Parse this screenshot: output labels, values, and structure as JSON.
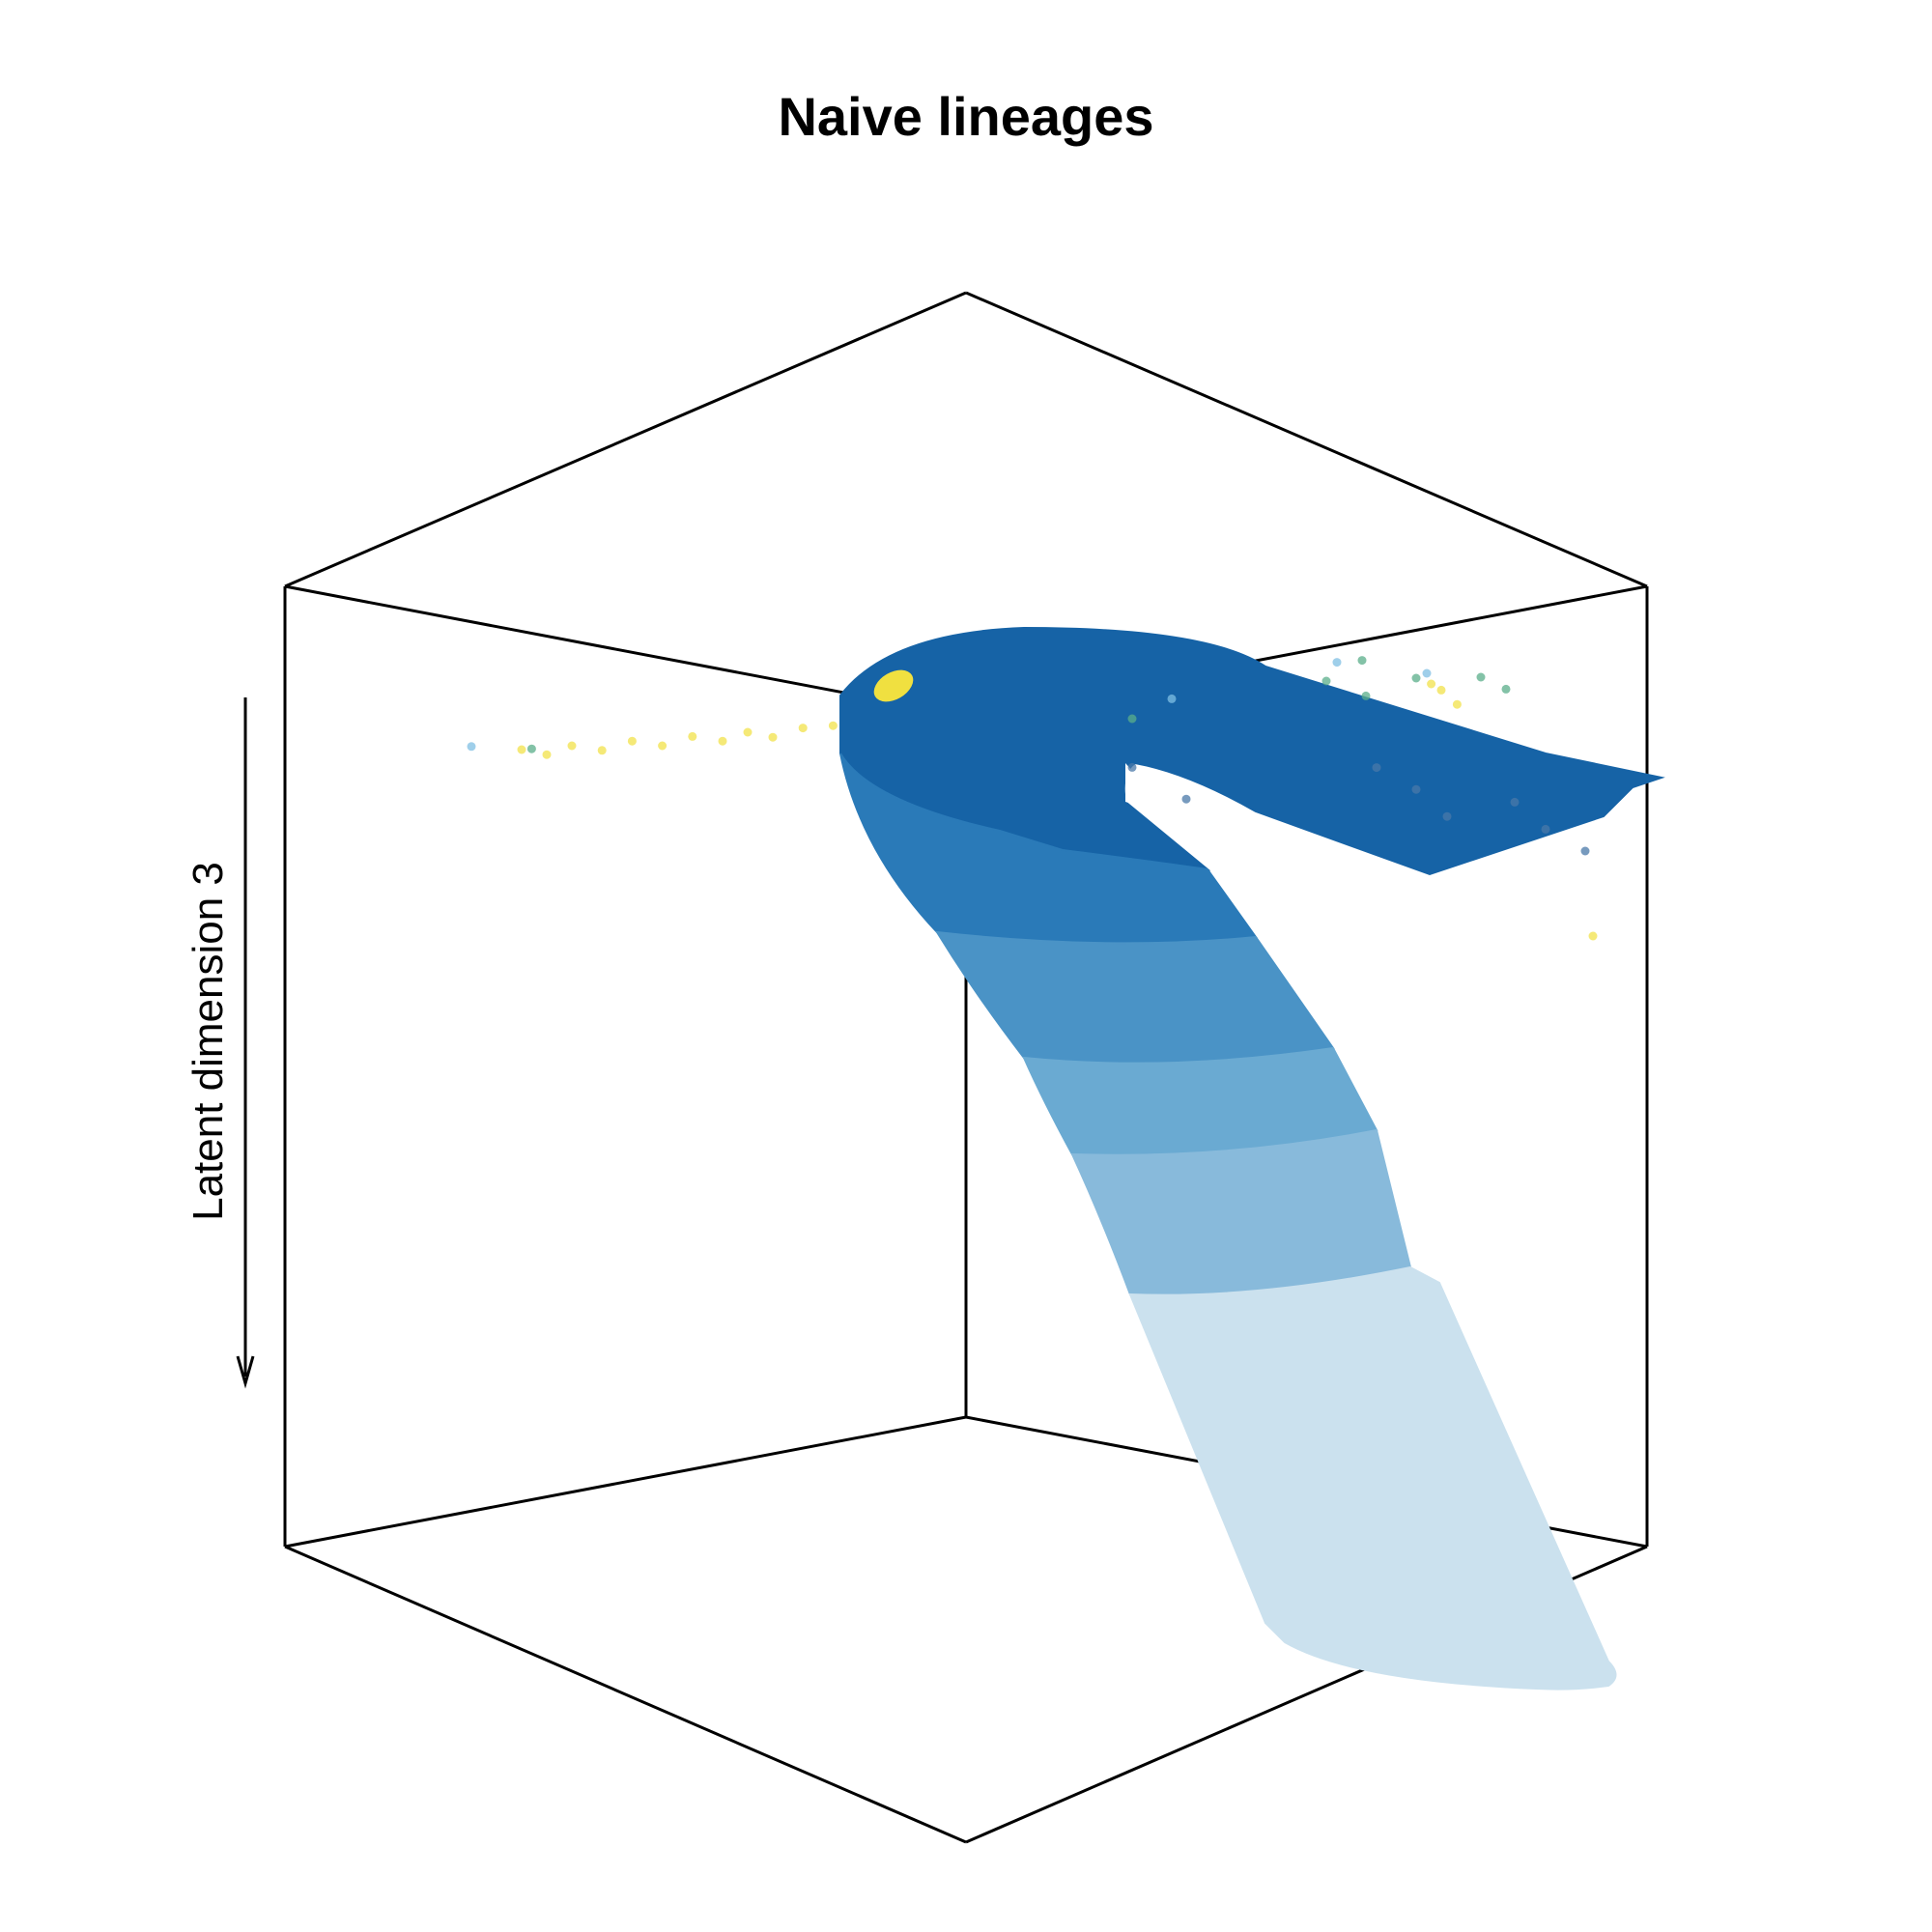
{
  "chart_data": {
    "type": "scatter",
    "title": "Naive lineages",
    "zlabel": "Latent dimension 3",
    "xlabel": "",
    "ylabel": "",
    "grid": false,
    "box": true,
    "series": [
      {
        "color": "#f2e14a",
        "points": [
          [
            -1.0,
            0.2,
            1.05
          ],
          [
            -0.95,
            0.2,
            1.04
          ],
          [
            -0.9,
            0.2,
            1.05
          ],
          [
            -0.84,
            0.2,
            1.04
          ],
          [
            -0.78,
            0.2,
            1.05
          ],
          [
            -0.72,
            0.2,
            1.04
          ],
          [
            -0.66,
            0.2,
            1.05
          ],
          [
            -0.6,
            0.2,
            1.04
          ],
          [
            -0.55,
            0.2,
            1.05
          ],
          [
            -0.5,
            0.2,
            1.04
          ],
          [
            -0.44,
            0.2,
            1.05
          ],
          [
            -0.38,
            0.2,
            1.05
          ],
          [
            -0.33,
            0.2,
            1.04
          ],
          [
            -0.28,
            0.2,
            1.05
          ],
          [
            -0.22,
            0.2,
            1.04
          ],
          [
            -0.17,
            0.2,
            1.05
          ],
          [
            -0.12,
            0.2,
            1.05
          ],
          [
            0.1,
            0.2,
            0.96
          ],
          [
            0.14,
            0.25,
            0.86
          ],
          [
            -0.15,
            0.2,
            0.86
          ],
          [
            0.6,
            0.6,
            1.08
          ],
          [
            0.62,
            0.62,
            1.06
          ],
          [
            0.58,
            0.6,
            1.09
          ],
          [
            0.7,
            0.95,
            0.75
          ]
        ]
      },
      {
        "color": "#5aae8a",
        "points": [
          [
            -0.98,
            0.2,
            1.05
          ],
          [
            -0.3,
            0.2,
            1.07
          ],
          [
            -0.1,
            0.25,
            1.06
          ],
          [
            0.0,
            0.3,
            1.07
          ],
          [
            0.05,
            0.35,
            1.06
          ],
          [
            0.1,
            0.4,
            1.05
          ],
          [
            0.4,
            0.55,
            1.1
          ],
          [
            0.45,
            0.6,
            1.08
          ],
          [
            0.55,
            0.6,
            1.1
          ],
          [
            0.65,
            0.65,
            1.1
          ],
          [
            0.7,
            0.65,
            1.08
          ],
          [
            0.5,
            0.5,
            1.12
          ]
        ]
      },
      {
        "color": "#7fbfe3",
        "points": [
          [
            -1.1,
            0.2,
            1.06
          ],
          [
            0.0,
            0.35,
            1.08
          ],
          [
            0.05,
            0.4,
            1.09
          ],
          [
            0.15,
            0.45,
            1.08
          ],
          [
            0.45,
            0.5,
            1.12
          ],
          [
            0.6,
            0.55,
            1.1
          ]
        ]
      },
      {
        "color": "#4a78a8",
        "points": [
          [
            0.05,
            0.3,
            1.0
          ],
          [
            0.1,
            0.4,
            0.98
          ],
          [
            0.15,
            0.5,
            0.94
          ],
          [
            0.5,
            0.55,
            0.97
          ],
          [
            0.55,
            0.6,
            0.94
          ],
          [
            0.6,
            0.62,
            0.9
          ],
          [
            0.7,
            0.68,
            0.92
          ],
          [
            0.75,
            0.7,
            0.88
          ],
          [
            0.8,
            0.75,
            0.85
          ]
        ]
      }
    ],
    "surface": {
      "colors": [
        "#1663a6",
        "#2a7ab8",
        "#4a93c6",
        "#6aaad2",
        "#88badb",
        "#cbe1ee"
      ],
      "legend": "none"
    }
  }
}
